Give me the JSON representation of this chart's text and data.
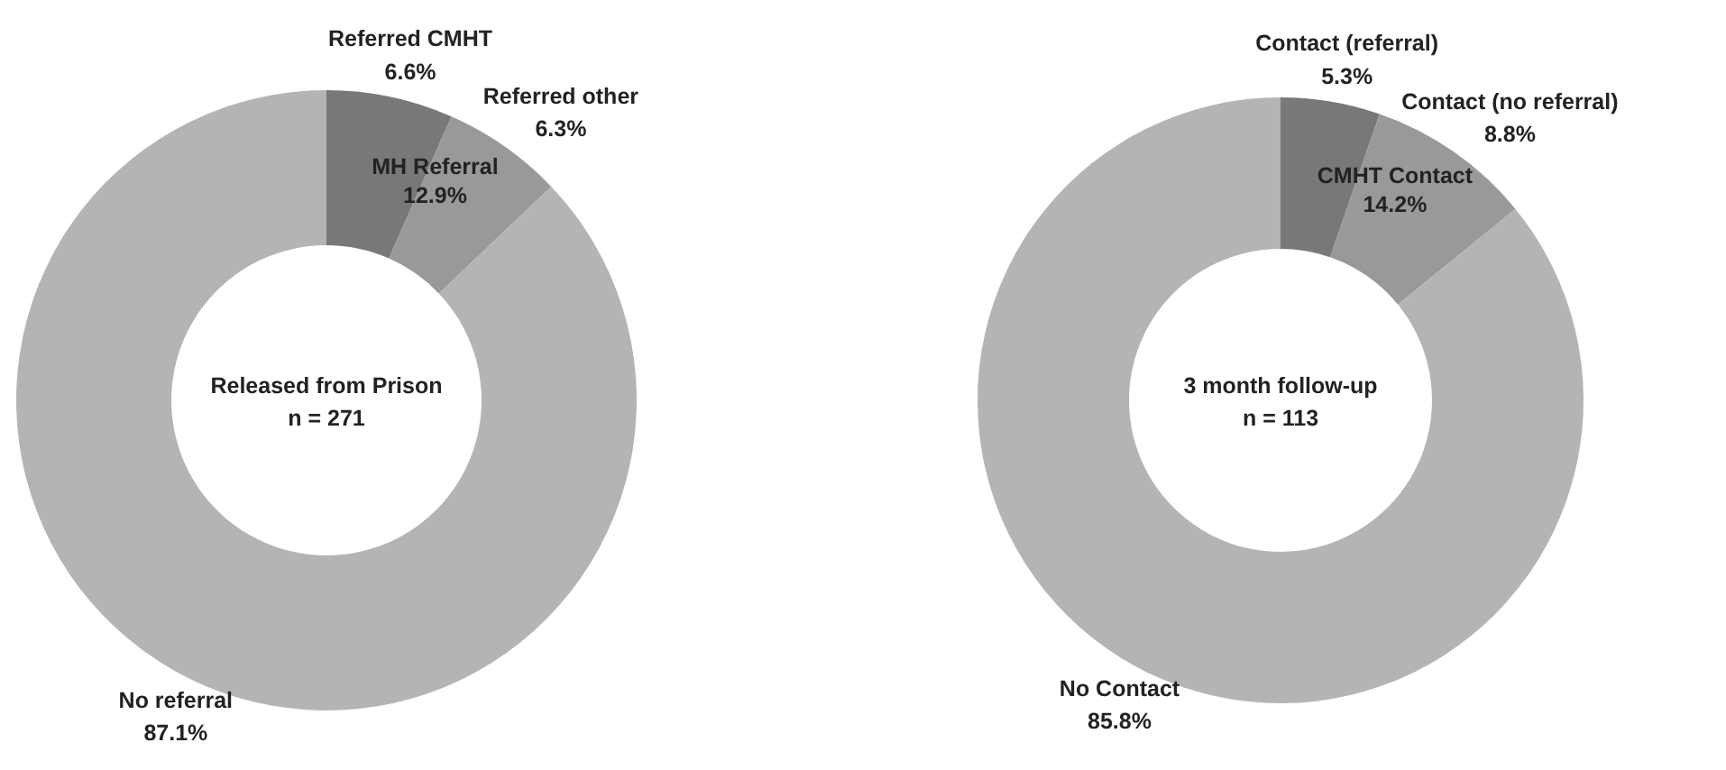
{
  "chart_data": [
    {
      "type": "donut",
      "title": "Released from Prison",
      "subtitle": "n = 271",
      "categories": [
        "Referred CMHT",
        "Referred other",
        "No referral"
      ],
      "values": [
        6.6,
        6.3,
        87.1
      ],
      "value_labels": [
        "6.6%",
        "6.3%",
        "87.1%"
      ],
      "colors": [
        "#787878",
        "#999999",
        "#b4b4b4"
      ],
      "annotations": [
        "MH Referral\n12.9%"
      ]
    },
    {
      "type": "donut",
      "title": "3 month follow-up",
      "subtitle": "n = 113",
      "categories": [
        "Contact (referral)",
        "Contact (no referral)",
        "No Contact"
      ],
      "values": [
        5.3,
        8.8,
        85.8
      ],
      "value_labels": [
        "5.3%",
        "8.8%",
        "85.8%"
      ],
      "colors": [
        "#787878",
        "#999999",
        "#b4b4b4"
      ],
      "annotations": [
        "CMHT Contact\n14.2%"
      ]
    }
  ]
}
